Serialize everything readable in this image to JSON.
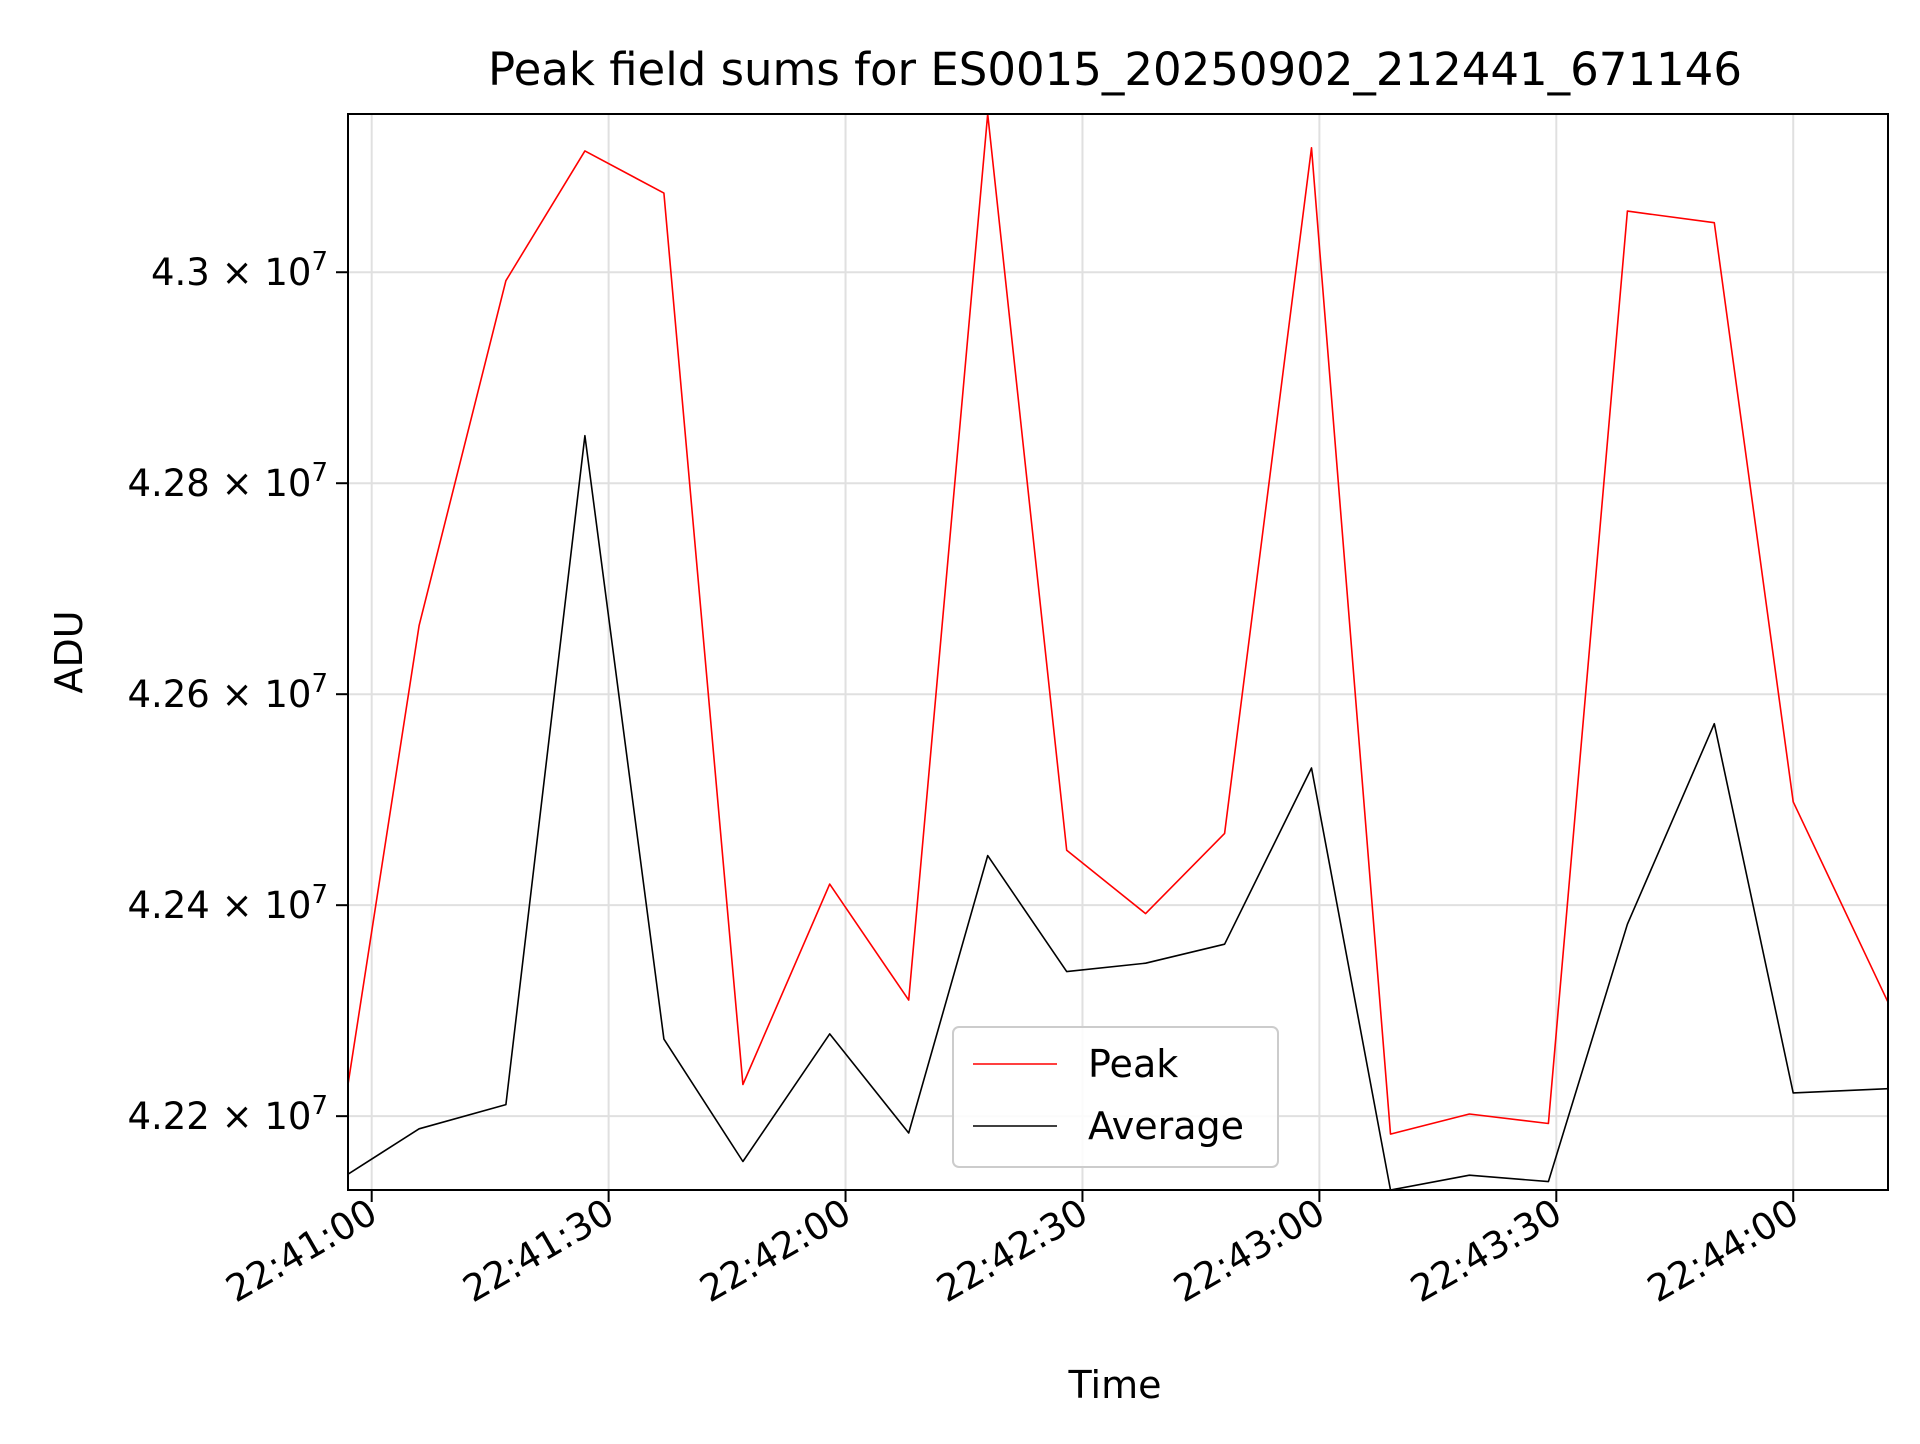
{
  "chart_data": {
    "type": "line",
    "title": "Peak field sums for ES0015_20250902_212441_671146",
    "xlabel": "Time",
    "ylabel": "ADU",
    "xlim": [
      "22:40:57",
      "22:44:12"
    ],
    "ylim": [
      42130000,
      43150000
    ],
    "x_ticks": [
      "22:41:00",
      "22:41:30",
      "22:42:00",
      "22:42:30",
      "22:43:00",
      "22:43:30",
      "22:44:00"
    ],
    "y_ticks": [
      {
        "value": 42200000,
        "mantissa": "4.22",
        "base": "10",
        "exponent": "7"
      },
      {
        "value": 42400000,
        "mantissa": "4.24",
        "base": "10",
        "exponent": "7"
      },
      {
        "value": 42600000,
        "mantissa": "4.26",
        "base": "10",
        "exponent": "7"
      },
      {
        "value": 42800000,
        "mantissa": "4.28",
        "base": "10",
        "exponent": "7"
      },
      {
        "value": 43000000,
        "mantissa": "4.3",
        "base": "10",
        "exponent": "7"
      }
    ],
    "grid": true,
    "legend_position": "bottom-center",
    "x": [
      "22:40:57",
      "22:41:06",
      "22:41:17",
      "22:41:27",
      "22:41:37",
      "22:41:47",
      "22:41:58",
      "22:42:08",
      "22:42:18",
      "22:42:28",
      "22:42:38",
      "22:42:48",
      "22:42:59",
      "22:43:09",
      "22:43:19",
      "22:43:29",
      "22:43:39",
      "22:43:50",
      "22:44:00",
      "22:44:12"
    ],
    "series": [
      {
        "name": "Peak",
        "color": "#ff0000",
        "values": [
          42230000,
          42665000,
          42992000,
          43115000,
          43075000,
          42230000,
          42420000,
          42310000,
          43150000,
          42452000,
          42392000,
          42468000,
          43118000,
          42183000,
          42202000,
          42193000,
          43058000,
          43047000,
          42498000,
          42308000
        ]
      },
      {
        "name": "Average",
        "color": "#000000",
        "values": [
          42145000,
          42188000,
          42211000,
          42845000,
          42273000,
          42157000,
          42278000,
          42184000,
          42447000,
          42337000,
          42345000,
          42363000,
          42530000,
          42130000,
          42144000,
          42138000,
          42382000,
          42572000,
          42222000,
          42226000
        ]
      }
    ]
  }
}
